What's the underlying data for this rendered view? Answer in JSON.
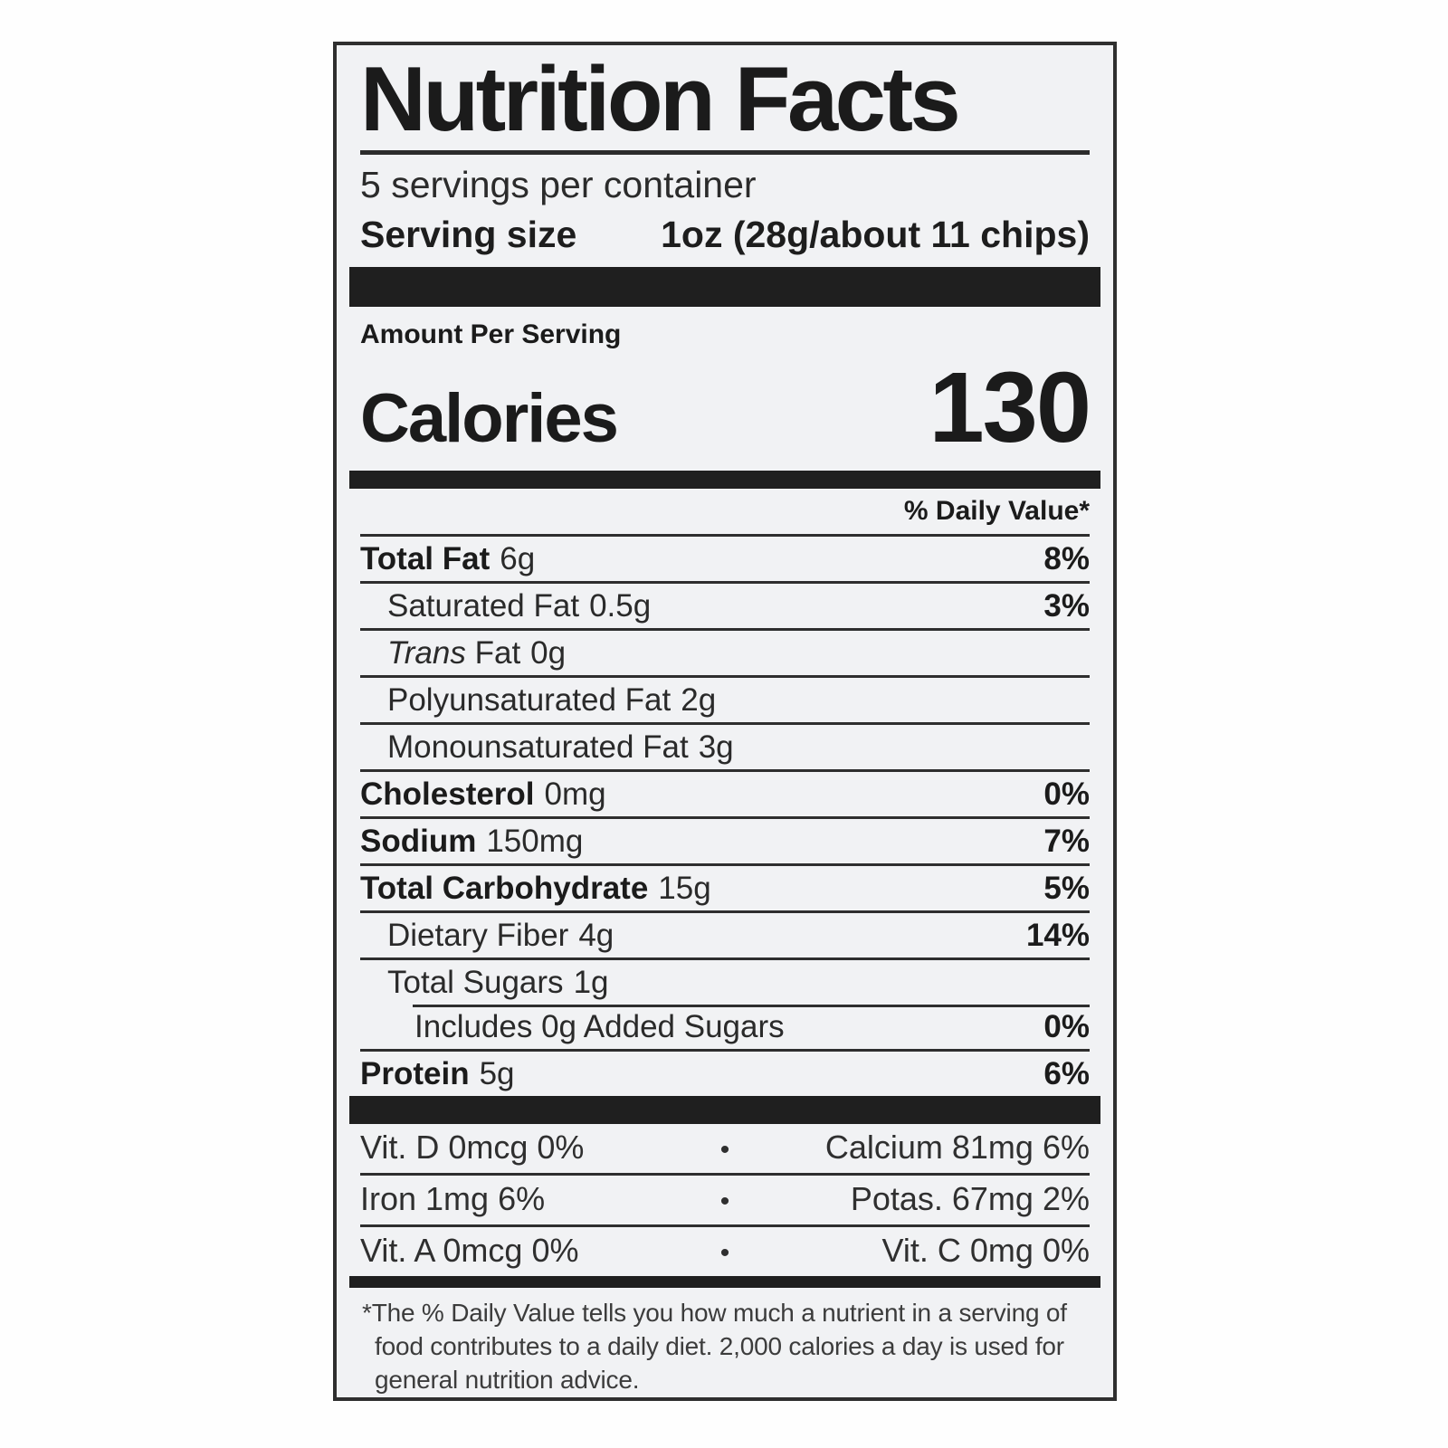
{
  "colors": {
    "ink": "#1b1b1b",
    "paper": "#f1f2f4",
    "rule": "#2e2e2e"
  },
  "label": {
    "title": "Nutrition Facts",
    "servings_per_container": "5 servings per container",
    "serving_size": {
      "label": "Serving size",
      "value": "1oz (28g/about 11 chips)"
    },
    "amount_per_serving": "Amount Per Serving",
    "calories": {
      "label": "Calories",
      "value": "130"
    },
    "daily_value_header": "% Daily Value*",
    "bullet": "•",
    "nutrients": [
      {
        "name": "Total Fat",
        "amount": "6g",
        "dv": "8%",
        "bold": true,
        "indent": 0
      },
      {
        "name": "Saturated Fat",
        "amount": "0.5g",
        "dv": "3%",
        "bold": false,
        "indent": 1
      },
      {
        "name_italic": "Trans",
        "name": "Fat",
        "amount": "0g",
        "dv": "",
        "bold": false,
        "indent": 1
      },
      {
        "name": "Polyunsaturated Fat",
        "amount": "2g",
        "dv": "",
        "bold": false,
        "indent": 1
      },
      {
        "name": "Monounsaturated Fat",
        "amount": "3g",
        "dv": "",
        "bold": false,
        "indent": 1
      },
      {
        "name": "Cholesterol",
        "amount": "0mg",
        "dv": "0%",
        "bold": true,
        "indent": 0
      },
      {
        "name": "Sodium",
        "amount": "150mg",
        "dv": "7%",
        "bold": true,
        "indent": 0
      },
      {
        "name": "Total Carbohydrate",
        "amount": "15g",
        "dv": "5%",
        "bold": true,
        "indent": 0
      },
      {
        "name": "Dietary Fiber",
        "amount": "4g",
        "dv": "14%",
        "bold": false,
        "indent": 1
      },
      {
        "name": "Total Sugars",
        "amount": "1g",
        "dv": "",
        "bold": false,
        "indent": 1
      },
      {
        "name": "Includes 0g Added Sugars",
        "amount": "",
        "dv": "0%",
        "bold": false,
        "indent": 2,
        "inset_divider": true
      },
      {
        "name": "Protein",
        "amount": "5g",
        "dv": "6%",
        "bold": true,
        "indent": 0
      }
    ],
    "vitamins": [
      {
        "left": "Vit. D 0mcg 0%",
        "right": "Calcium 81mg 6%"
      },
      {
        "left": "Iron 1mg 6%",
        "right": "Potas. 67mg 2%"
      },
      {
        "left": "Vit. A 0mcg 0%",
        "right": "Vit. C 0mg 0%"
      }
    ],
    "footnote": "*The % Daily Value tells you how much a nutrient in a serving of food contributes to a daily diet. 2,000 calories a day is used for general nutrition advice."
  }
}
